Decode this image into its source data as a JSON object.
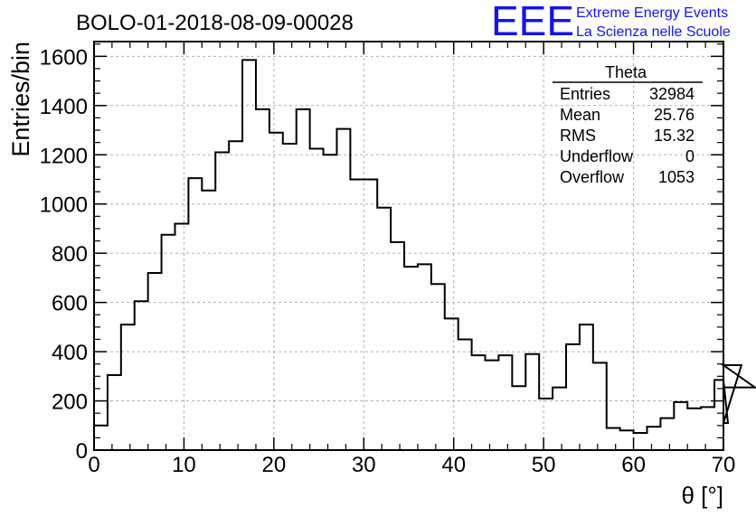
{
  "chart_data": {
    "type": "bar",
    "title": "BOLO-01-2018-08-09-00028",
    "xlabel": "θ [°]",
    "ylabel": "Entries/bin",
    "xlim": [
      0,
      70
    ],
    "ylim": [
      0,
      1660
    ],
    "x_ticks": [
      "0",
      "10",
      "20",
      "30",
      "40",
      "50",
      "60",
      "70"
    ],
    "y_ticks": [
      "0",
      "200",
      "400",
      "600",
      "800",
      "1000",
      "1200",
      "1400",
      "1600"
    ],
    "grid": true,
    "bin_width": 1.5,
    "values": [
      100,
      305,
      510,
      605,
      720,
      875,
      920,
      1105,
      1055,
      1210,
      1255,
      1585,
      1385,
      1290,
      1245,
      1385,
      1225,
      1200,
      1305,
      1100,
      1100,
      985,
      845,
      745,
      755,
      675,
      535,
      450,
      385,
      365,
      385,
      260,
      390,
      210,
      255,
      430,
      510,
      355,
      90,
      80,
      70,
      95,
      130,
      195,
      170,
      175,
      285,
      110,
      345,
      255
    ],
    "series": [
      {
        "name": "Theta"
      }
    ]
  },
  "stats": {
    "title": "Theta",
    "rows": [
      {
        "label": "Entries",
        "value": "32984"
      },
      {
        "label": "Mean",
        "value": "25.76"
      },
      {
        "label": "RMS",
        "value": "15.32"
      },
      {
        "label": "Underflow",
        "value": "0"
      },
      {
        "label": "Overflow",
        "value": "1053"
      }
    ]
  },
  "logo": {
    "text": "EEE",
    "line1": "Extreme Energy Events",
    "line2": "La Scienza nelle Scuole",
    "color": "#1515e8"
  },
  "colors": {
    "hist": "#000000",
    "grid": "#b0b0b0"
  }
}
